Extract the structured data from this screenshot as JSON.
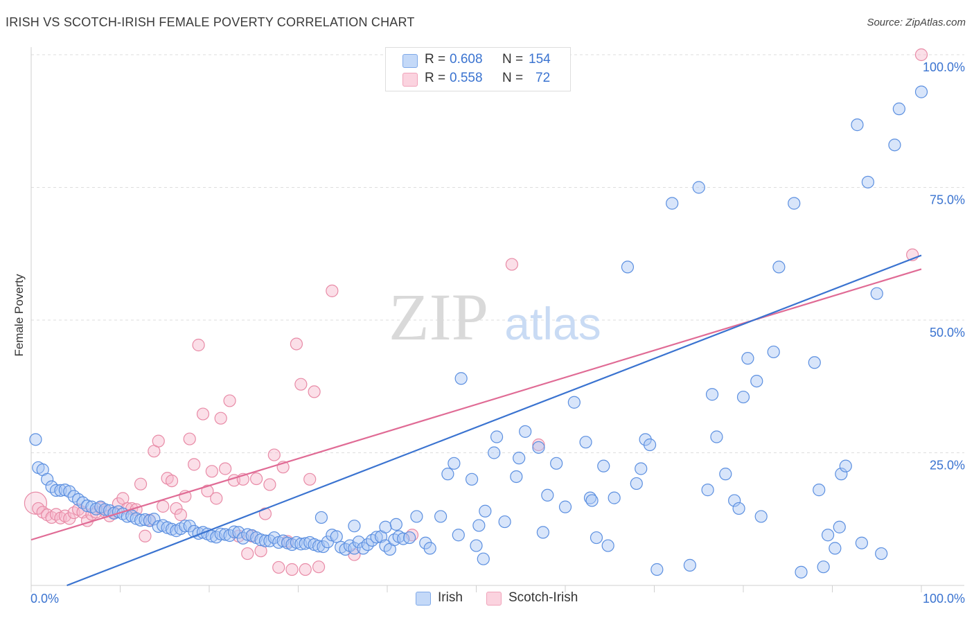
{
  "title": "IRISH VS SCOTCH-IRISH FEMALE POVERTY CORRELATION CHART",
  "source": "Source: ZipAtlas.com",
  "watermark": {
    "zip": "ZIP",
    "atlas": "atlas"
  },
  "legend_stats": [
    {
      "r_label": "R =",
      "r_value": "0.608",
      "n_label": "N =",
      "n_value": "154",
      "color": "#a9c6f3"
    },
    {
      "r_label": "R =",
      "r_value": "0.558",
      "n_label": "N =",
      "n_value": "72",
      "color": "#f6b8cb"
    }
  ],
  "colors": {
    "irish_fill": "#a9c6f3",
    "irish_stroke": "#5b8fe0",
    "irish_line": "#3a73d0",
    "scotch_fill": "#f6b8cb",
    "scotch_stroke": "#e88aa6",
    "scotch_line": "#e06b95",
    "grid": "#dddddd",
    "axis_label": "#3a73d0"
  },
  "chart_data": {
    "type": "scatter",
    "title": "IRISH VS SCOTCH-IRISH FEMALE POVERTY CORRELATION CHART",
    "xlabel": "",
    "ylabel": "Female Poverty",
    "xlim": [
      0,
      100
    ],
    "ylim": [
      0,
      100
    ],
    "x_tick_labels": [
      {
        "value": 0,
        "label": "0.0%"
      },
      {
        "value": 100,
        "label": "100.0%"
      }
    ],
    "y_tick_labels": [
      {
        "value": 25,
        "label": "25.0%"
      },
      {
        "value": 50,
        "label": "50.0%"
      },
      {
        "value": 75,
        "label": "75.0%"
      },
      {
        "value": 100,
        "label": "100.0%"
      }
    ],
    "grid": true,
    "legend_position": "bottom",
    "series": [
      {
        "name": "Irish",
        "trendline": {
          "x": [
            0,
            100
          ],
          "y": [
            -2.6,
            62.2
          ]
        },
        "points": [
          [
            0.5,
            27.5
          ],
          [
            0.8,
            22.2
          ],
          [
            1.3,
            21.8
          ],
          [
            1.8,
            20
          ],
          [
            2.3,
            18.6
          ],
          [
            2.8,
            17.9
          ],
          [
            3.3,
            17.9
          ],
          [
            3.8,
            18
          ],
          [
            4.3,
            17.7
          ],
          [
            4.8,
            16.8
          ],
          [
            5.3,
            16.2
          ],
          [
            5.8,
            15.6
          ],
          [
            6.3,
            15
          ],
          [
            6.8,
            14.8
          ],
          [
            7.3,
            14.4
          ],
          [
            7.8,
            14.8
          ],
          [
            8.3,
            14.3
          ],
          [
            8.8,
            14.1
          ],
          [
            9.3,
            13.6
          ],
          [
            9.8,
            13.9
          ],
          [
            10.3,
            13.5
          ],
          [
            10.8,
            13
          ],
          [
            11.3,
            13.1
          ],
          [
            11.8,
            12.6
          ],
          [
            12.3,
            12.3
          ],
          [
            12.8,
            12.4
          ],
          [
            13.3,
            12.2
          ],
          [
            13.8,
            12.5
          ],
          [
            14.3,
            11.1
          ],
          [
            14.8,
            11.3
          ],
          [
            15.3,
            10.9
          ],
          [
            15.8,
            10.6
          ],
          [
            16.3,
            10.3
          ],
          [
            16.8,
            10.7
          ],
          [
            17.3,
            11.2
          ],
          [
            17.8,
            11.2
          ],
          [
            18.3,
            10.2
          ],
          [
            18.8,
            9.8
          ],
          [
            19.3,
            10
          ],
          [
            19.8,
            9.7
          ],
          [
            20.3,
            9.3
          ],
          [
            20.8,
            9.1
          ],
          [
            21.3,
            9.7
          ],
          [
            21.8,
            9.6
          ],
          [
            22.3,
            9.4
          ],
          [
            22.8,
            10.1
          ],
          [
            23.3,
            10
          ],
          [
            23.8,
            8.9
          ],
          [
            24.3,
            9.6
          ],
          [
            24.8,
            9.4
          ],
          [
            25.3,
            9
          ],
          [
            25.8,
            8.6
          ],
          [
            26.3,
            8.4
          ],
          [
            26.8,
            8.4
          ],
          [
            27.3,
            9
          ],
          [
            27.8,
            8.1
          ],
          [
            28.3,
            8.4
          ],
          [
            28.8,
            8
          ],
          [
            29.3,
            7.7
          ],
          [
            29.8,
            8.1
          ],
          [
            30.3,
            7.8
          ],
          [
            30.8,
            7.9
          ],
          [
            31.3,
            8.1
          ],
          [
            31.8,
            7.7
          ],
          [
            32.3,
            7.4
          ],
          [
            32.8,
            7.3
          ],
          [
            33.3,
            8.2
          ],
          [
            33.8,
            9.5
          ],
          [
            34.3,
            9.2
          ],
          [
            34.8,
            7.2
          ],
          [
            35.3,
            6.8
          ],
          [
            35.8,
            7.5
          ],
          [
            36.3,
            7
          ],
          [
            36.8,
            8.2
          ],
          [
            37.3,
            7
          ],
          [
            37.8,
            7.7
          ],
          [
            38.3,
            8.5
          ],
          [
            38.8,
            9.1
          ],
          [
            39.3,
            9.2
          ],
          [
            39.8,
            7.5
          ],
          [
            40.3,
            6.8
          ],
          [
            40.8,
            8.6
          ],
          [
            41.3,
            9.2
          ],
          [
            41.8,
            8.8
          ],
          [
            32.6,
            12.8
          ],
          [
            36.3,
            11.2
          ],
          [
            39.8,
            11
          ],
          [
            41,
            11.5
          ],
          [
            42.5,
            9
          ],
          [
            43.3,
            13
          ],
          [
            44.3,
            8
          ],
          [
            44.8,
            7
          ],
          [
            46,
            13
          ],
          [
            46.8,
            21
          ],
          [
            47.5,
            23
          ],
          [
            48,
            9.5
          ],
          [
            48.3,
            39
          ],
          [
            49.5,
            20
          ],
          [
            50,
            7.5
          ],
          [
            50.3,
            11.3
          ],
          [
            50.8,
            5
          ],
          [
            51,
            14
          ],
          [
            52,
            25
          ],
          [
            52.3,
            28
          ],
          [
            53.2,
            12
          ],
          [
            54.5,
            20.5
          ],
          [
            54.8,
            24
          ],
          [
            55.5,
            29
          ],
          [
            57,
            26
          ],
          [
            57.5,
            10
          ],
          [
            58,
            17
          ],
          [
            59,
            23
          ],
          [
            60,
            14.8
          ],
          [
            61,
            34.5
          ],
          [
            62.3,
            27
          ],
          [
            62.8,
            16.5
          ],
          [
            63,
            16
          ],
          [
            63.5,
            9
          ],
          [
            64.3,
            22.5
          ],
          [
            64.8,
            7.5
          ],
          [
            65.5,
            16.5
          ],
          [
            67,
            60
          ],
          [
            68,
            19.2
          ],
          [
            68.5,
            22
          ],
          [
            69,
            27.5
          ],
          [
            69.5,
            26.5
          ],
          [
            70.3,
            3
          ],
          [
            72,
            72
          ],
          [
            74,
            3.8
          ],
          [
            75,
            75
          ],
          [
            76,
            18
          ],
          [
            76.5,
            36
          ],
          [
            77,
            28
          ],
          [
            78,
            21
          ],
          [
            79,
            16
          ],
          [
            79.5,
            14.5
          ],
          [
            80,
            35.5
          ],
          [
            80.5,
            42.8
          ],
          [
            81.5,
            38.5
          ],
          [
            82,
            13
          ],
          [
            83.4,
            44
          ],
          [
            84,
            60
          ],
          [
            85.7,
            72
          ],
          [
            86.5,
            2.5
          ],
          [
            88,
            42
          ],
          [
            88.5,
            18
          ],
          [
            89,
            3.5
          ],
          [
            89.5,
            9.5
          ],
          [
            90.3,
            7
          ],
          [
            90.8,
            11
          ],
          [
            91,
            21
          ],
          [
            91.5,
            22.5
          ],
          [
            92.8,
            86.8
          ],
          [
            93.3,
            8
          ],
          [
            94,
            76
          ],
          [
            95,
            55
          ],
          [
            95.5,
            6
          ],
          [
            97,
            83
          ],
          [
            97.5,
            89.8
          ],
          [
            100,
            93
          ]
        ]
      },
      {
        "name": "Scotch-Irish",
        "trendline": {
          "x": [
            0,
            100
          ],
          "y": [
            8.6,
            59.6
          ]
        },
        "points": [
          [
            0.5,
            15.5
          ],
          [
            0.8,
            14.5
          ],
          [
            1.3,
            13.8
          ],
          [
            1.8,
            13.3
          ],
          [
            2.3,
            12.8
          ],
          [
            2.8,
            13.4
          ],
          [
            3.3,
            12.7
          ],
          [
            3.8,
            13.1
          ],
          [
            4.3,
            12.6
          ],
          [
            4.8,
            13.7
          ],
          [
            5.3,
            14.3
          ],
          [
            5.8,
            13.8
          ],
          [
            6.3,
            12.2
          ],
          [
            6.8,
            13.4
          ],
          [
            7.3,
            13.8
          ],
          [
            7.8,
            14.6
          ],
          [
            8.3,
            13.9
          ],
          [
            8.8,
            13.1
          ],
          [
            9.3,
            13.7
          ],
          [
            9.8,
            15.4
          ],
          [
            10.3,
            16.4
          ],
          [
            10.8,
            14.5
          ],
          [
            11.3,
            14.5
          ],
          [
            11.8,
            14.3
          ],
          [
            12.3,
            19.1
          ],
          [
            12.8,
            9.3
          ],
          [
            13.3,
            12.3
          ],
          [
            13.8,
            25.3
          ],
          [
            14.3,
            27.2
          ],
          [
            14.8,
            14.9
          ],
          [
            15.3,
            20.2
          ],
          [
            15.8,
            19.7
          ],
          [
            16.3,
            14.5
          ],
          [
            16.8,
            13.3
          ],
          [
            17.3,
            16.8
          ],
          [
            17.8,
            27.6
          ],
          [
            18.3,
            22.8
          ],
          [
            18.8,
            45.3
          ],
          [
            19.3,
            32.3
          ],
          [
            19.8,
            17.8
          ],
          [
            20.3,
            21.5
          ],
          [
            20.8,
            16.4
          ],
          [
            21.3,
            31.5
          ],
          [
            21.8,
            22
          ],
          [
            22.3,
            34.8
          ],
          [
            22.8,
            19.8
          ],
          [
            23.3,
            9.3
          ],
          [
            23.8,
            20
          ],
          [
            24.3,
            6
          ],
          [
            24.8,
            9.3
          ],
          [
            25.3,
            20.1
          ],
          [
            25.8,
            6.5
          ],
          [
            26.3,
            13.5
          ],
          [
            26.8,
            19
          ],
          [
            27.3,
            24.6
          ],
          [
            27.8,
            3.4
          ],
          [
            28.3,
            22.3
          ],
          [
            28.8,
            8.3
          ],
          [
            29.3,
            3
          ],
          [
            29.8,
            45.5
          ],
          [
            30.3,
            37.9
          ],
          [
            30.8,
            3
          ],
          [
            31.3,
            20
          ],
          [
            31.8,
            36.5
          ],
          [
            32.3,
            3.5
          ],
          [
            33.8,
            55.5
          ],
          [
            36.3,
            5.8
          ],
          [
            42.8,
            9.5
          ],
          [
            54,
            60.5
          ],
          [
            57,
            26.5
          ],
          [
            99,
            62.3
          ],
          [
            100,
            100
          ]
        ]
      }
    ]
  }
}
